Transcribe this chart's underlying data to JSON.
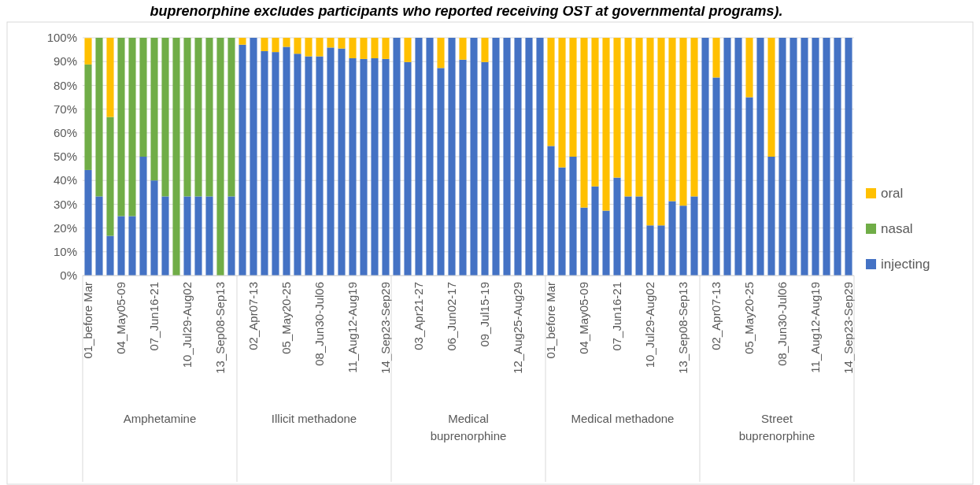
{
  "chart_data": {
    "type": "bar",
    "stacked": true,
    "title": "buprenorphine excludes participants who reported receiving OST at governmental programs).",
    "categories": [
      "01_before Mar",
      null,
      null,
      "04_May05-09",
      null,
      null,
      "07_Jun16-21",
      null,
      null,
      "10_Jul29-Aug02",
      null,
      null,
      "13_Sep08-Sep13",
      null,
      null,
      "02_Apr07-13",
      null,
      null,
      "05_May20-25",
      null,
      null,
      "08_Jun30-Jul06",
      null,
      null,
      "11_Aug12-Aug19",
      null,
      null,
      "14_Sep23-Sep29",
      null,
      null,
      "03_Apr21-27",
      null,
      null,
      "06_Jun02-17",
      null,
      null,
      "09_Jul15-19",
      null,
      null,
      "12_Aug25-Aug29",
      null,
      null,
      "01_before Mar",
      null,
      null,
      "04_May05-09",
      null,
      null,
      "07_Jun16-21",
      null,
      null,
      "10_Jul29-Aug02",
      null,
      null,
      "13_Sep08-Sep13",
      null,
      null,
      "02_Apr07-13",
      null,
      null,
      "05_May20-25",
      null,
      null,
      "08_Jun30-Jul06",
      null,
      null,
      "11_Aug12-Aug19",
      null,
      null,
      "14_Sep23-Sep29"
    ],
    "annotations": [
      "Amphetamine",
      "Illicit methadone",
      "Medical buprenorphine",
      "Medical methadone",
      "Street buprenorphine"
    ],
    "series": [
      {
        "name": "injecting",
        "color": "#4472c4",
        "values": [
          44.4,
          33.3,
          16.7,
          25,
          25,
          50,
          40,
          33.3,
          0,
          33.3,
          33.3,
          33.3,
          0,
          33.3,
          97.1,
          100,
          94.4,
          94,
          96.2,
          93.3,
          92.2,
          92.2,
          95.9,
          95.5,
          91.4,
          91.1,
          91.4,
          91.1,
          100,
          89.8,
          100,
          100,
          87.3,
          100,
          90.8,
          100,
          89.8,
          100,
          100,
          100,
          100,
          100,
          54.5,
          45.5,
          50,
          28.6,
          37.5,
          27.3,
          41.2,
          33.3,
          33.3,
          21.1,
          21.1,
          31.3,
          29.4,
          33.3,
          100,
          83.3,
          100,
          100,
          75,
          100,
          50,
          100,
          100,
          100,
          100,
          100,
          100,
          100
        ]
      },
      {
        "name": "nasal",
        "color": "#70ad47",
        "values": [
          44.4,
          66.7,
          50,
          75,
          75,
          50,
          60,
          66.7,
          100,
          66.7,
          66.7,
          66.7,
          100,
          66.7,
          0,
          0,
          0,
          0,
          0,
          0,
          0,
          0,
          0,
          0,
          0,
          0,
          0,
          0,
          0,
          0,
          0,
          0,
          0,
          0,
          0,
          0,
          0,
          0,
          0,
          0,
          0,
          0,
          0,
          0,
          0,
          0,
          0,
          0,
          0,
          0,
          0,
          0,
          0,
          0,
          0,
          0,
          0,
          0,
          0,
          0,
          0,
          0,
          0,
          0,
          0,
          0,
          0,
          0,
          0,
          0
        ]
      },
      {
        "name": "oral",
        "color": "#ffc000",
        "values": [
          11.1,
          0,
          33.3,
          0,
          0,
          0,
          0,
          0,
          0,
          0,
          0,
          0,
          0,
          0,
          2.9,
          0,
          5.6,
          6,
          3.8,
          6.7,
          7.8,
          7.8,
          4.1,
          4.5,
          8.6,
          8.9,
          8.6,
          8.9,
          0,
          10.2,
          0,
          0,
          12.7,
          0,
          9.2,
          0,
          10.2,
          0,
          0,
          0,
          0,
          0,
          45.5,
          54.5,
          50,
          71.4,
          62.5,
          72.7,
          58.8,
          66.7,
          66.7,
          78.9,
          78.9,
          68.7,
          70.6,
          66.7,
          0,
          16.7,
          0,
          0,
          25,
          0,
          50,
          0,
          0,
          0,
          0,
          0,
          0,
          0
        ]
      }
    ],
    "ylim": [
      0,
      100
    ],
    "yticks": [
      {
        "value": 0,
        "label": "0%"
      },
      {
        "value": 10,
        "label": "10%"
      },
      {
        "value": 20,
        "label": "20%"
      },
      {
        "value": 30,
        "label": "30%"
      },
      {
        "value": 40,
        "label": "40%"
      },
      {
        "value": 50,
        "label": "50%"
      },
      {
        "value": 60,
        "label": "60%"
      },
      {
        "value": 70,
        "label": "70%"
      },
      {
        "value": 80,
        "label": "80%"
      },
      {
        "value": 90,
        "label": "90%"
      },
      {
        "value": 100,
        "label": "100%"
      }
    ],
    "grid": "y",
    "legend": "right"
  }
}
